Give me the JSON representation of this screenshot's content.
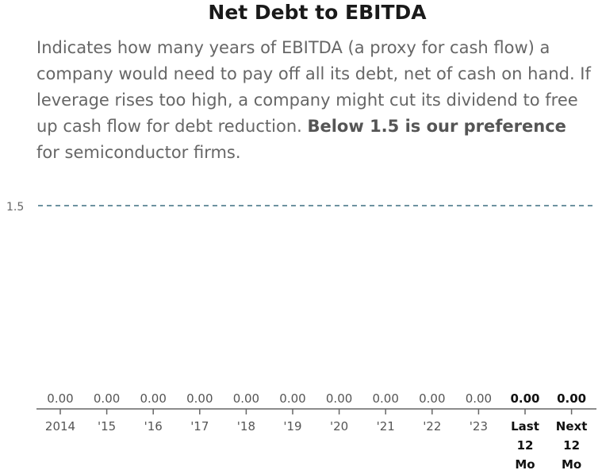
{
  "header": {
    "title": "Net Debt to EBITDA",
    "description_part1": "Indicates how many years of EBITDA (a proxy for cash flow) a company would need to pay off all its debt, net of cash on hand. If leverage rises too high, a company might cut its dividend to free up cash flow for debt reduction. ",
    "description_bold": "Below 1.5 is our preference",
    "description_part2": " for semiconductor firms."
  },
  "chart_data": {
    "type": "bar",
    "categories": [
      "2014",
      "'15",
      "'16",
      "'17",
      "'18",
      "'19",
      "'20",
      "'21",
      "'22",
      "'23",
      "Last 12 Mo",
      "Next 12 Mo"
    ],
    "values": [
      0.0,
      0.0,
      0.0,
      0.0,
      0.0,
      0.0,
      0.0,
      0.0,
      0.0,
      0.0,
      0.0,
      0.0
    ],
    "value_labels": [
      "0.00",
      "0.00",
      "0.00",
      "0.00",
      "0.00",
      "0.00",
      "0.00",
      "0.00",
      "0.00",
      "0.00",
      "0.00",
      "0.00"
    ],
    "bold_categories": [
      "Last 12 Mo",
      "Next 12 Mo"
    ],
    "reference_line": {
      "value": 1.5,
      "label": "1.5",
      "color": "#3d6e80",
      "style": "dashed"
    },
    "ylim": [
      0,
      1.5
    ],
    "grid": false,
    "colors": {
      "axis": "#666666",
      "text": "#555555",
      "bold_text": "#111111"
    }
  }
}
